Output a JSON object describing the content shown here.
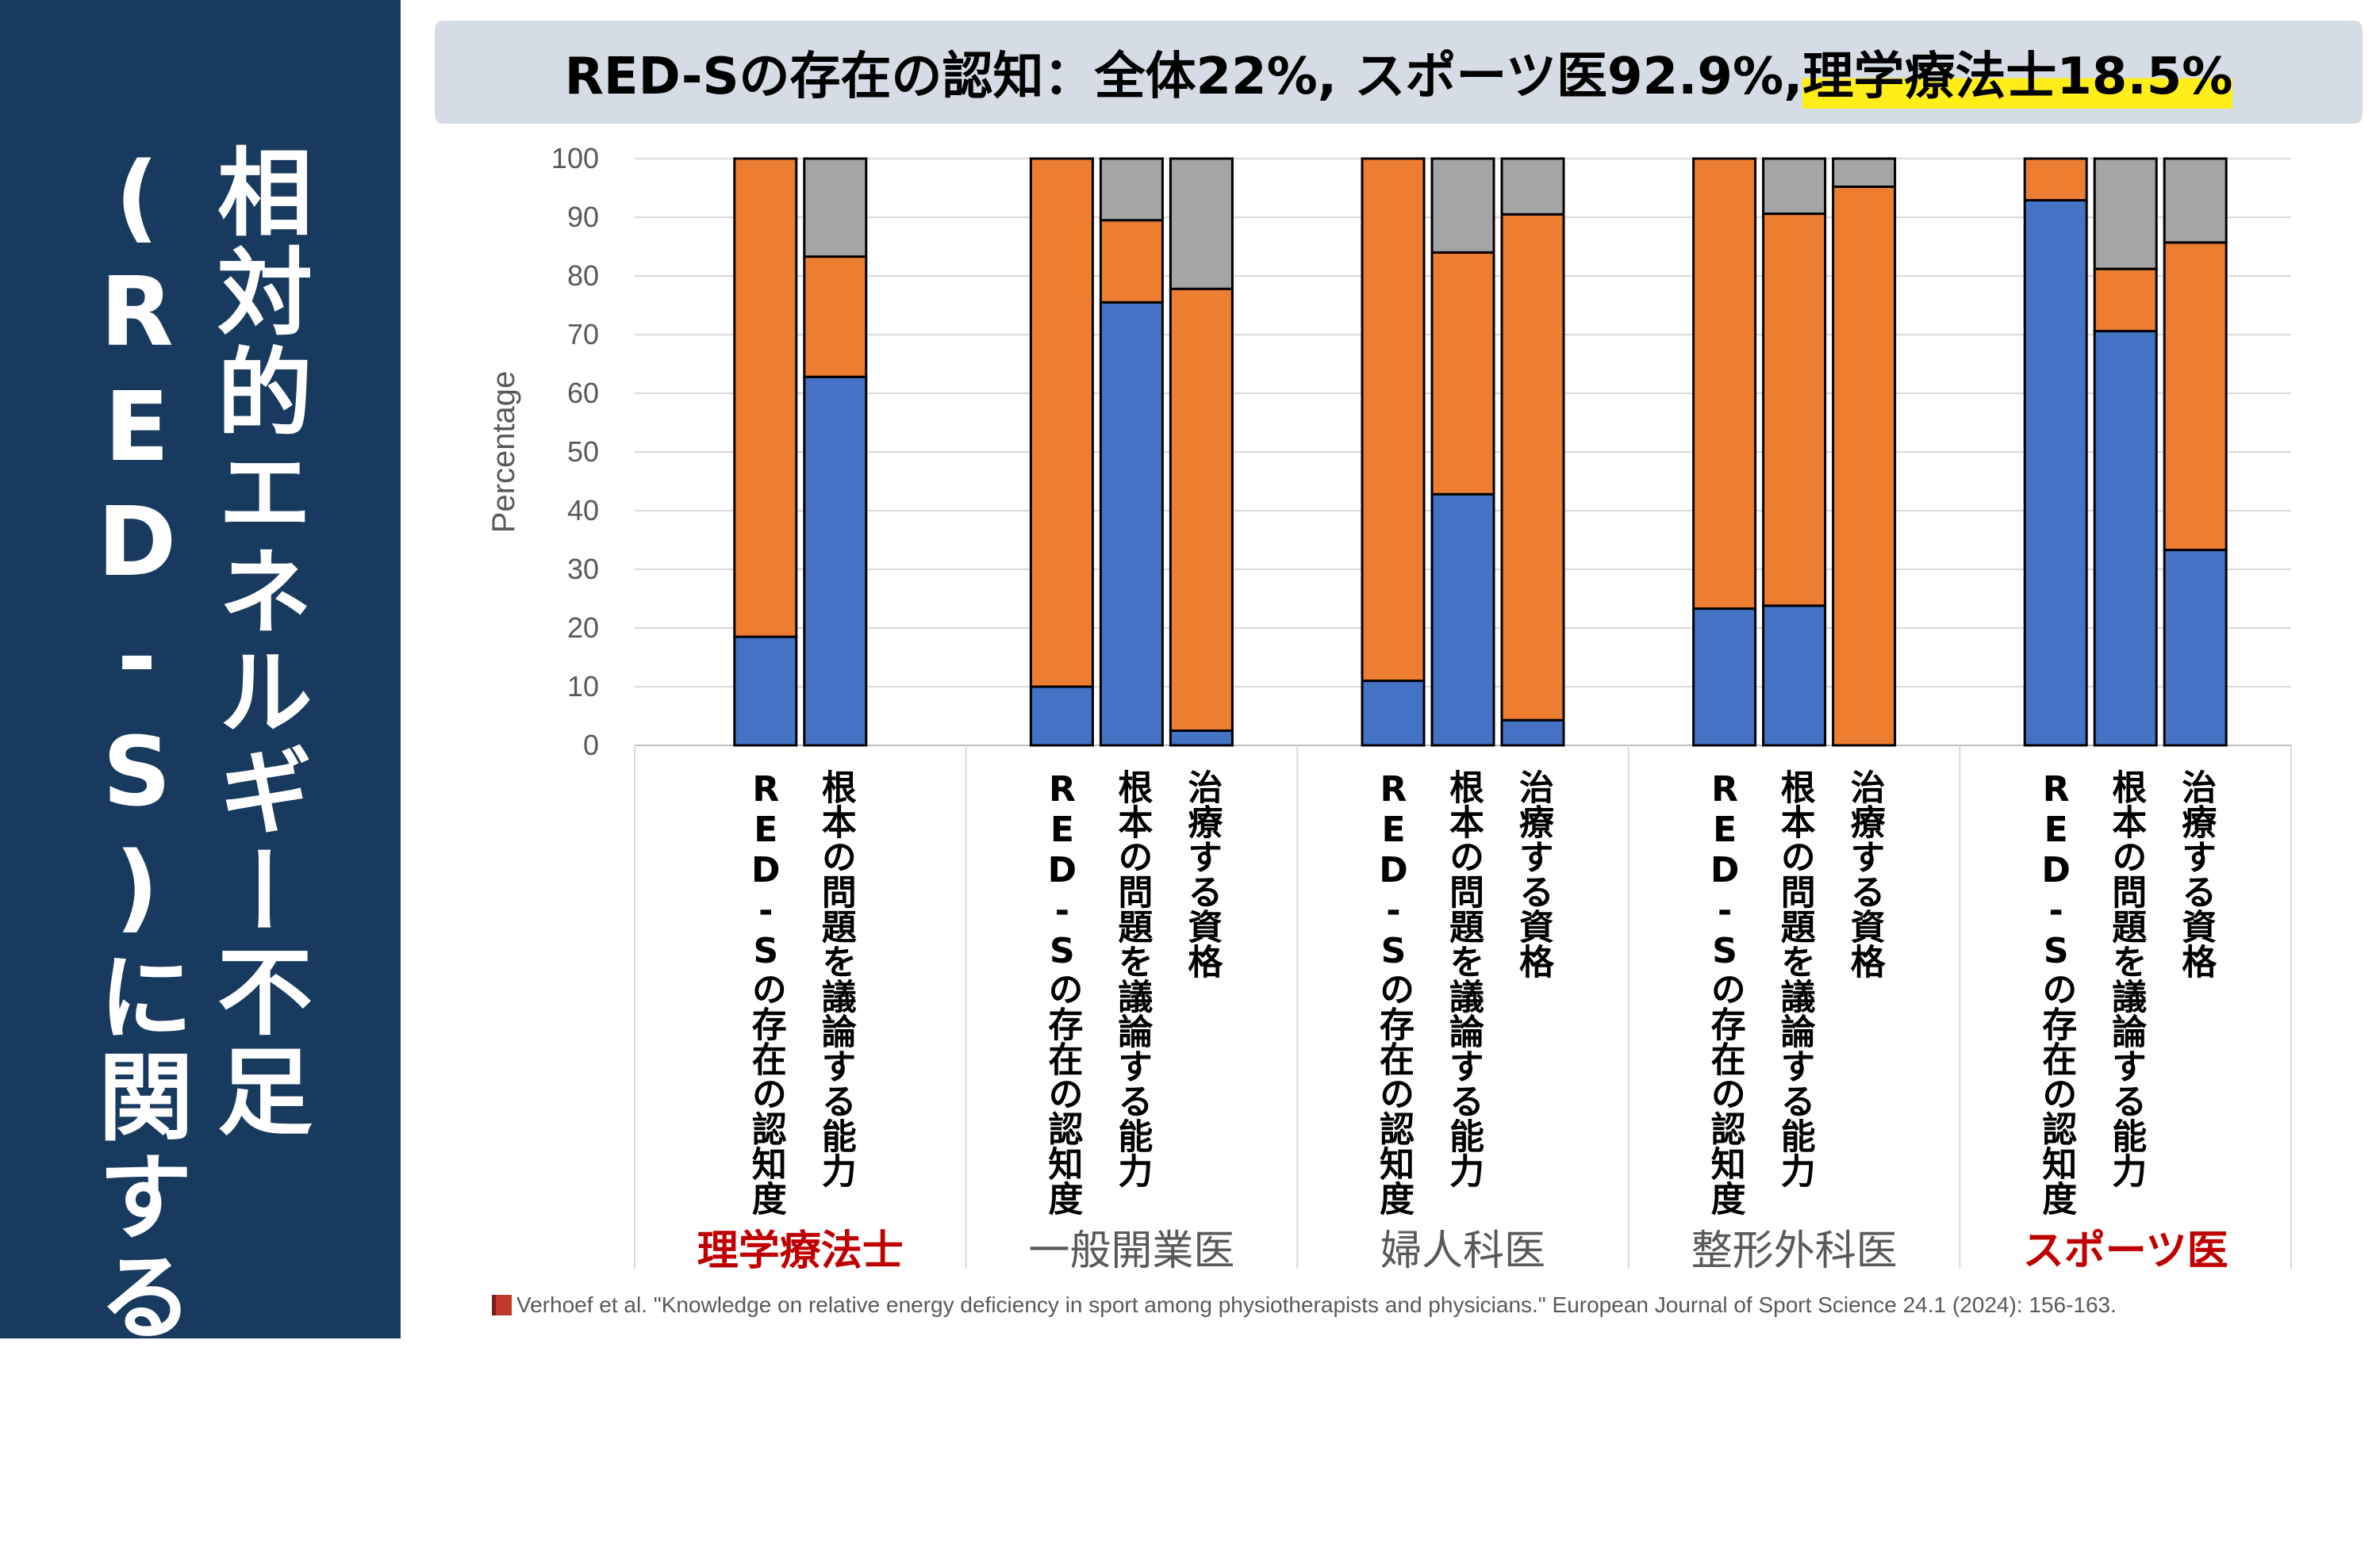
{
  "sidebar": {
    "title_line1": "相対的エネルギー不足",
    "title_line2": "(RED-S)に関する知識"
  },
  "banner": {
    "text_main": "RED-Sの存在の認知：全体22%, スポーツ医92.9%, ",
    "text_highlight": "理学療法士18.5%"
  },
  "citation": {
    "icon": "book-icon",
    "text": "Verhoef et al. \"Knowledge on relative energy deficiency in sport among physiotherapists and physicians.\" European Journal of Sport Science 24.1 (2024): 156-163."
  },
  "colors": {
    "blue": "#4472c4",
    "orange": "#ed7d31",
    "gray": "#a5a5a5",
    "sidebar": "#173a5e",
    "highlight": "#ffee1a",
    "emphasis": "#c00000"
  },
  "chart_data": {
    "type": "bar",
    "stacked": true,
    "ylabel": "Percentage",
    "ylim": [
      0,
      100
    ],
    "yticks": [
      0,
      10,
      20,
      30,
      40,
      50,
      60,
      70,
      80,
      90,
      100
    ],
    "grid": true,
    "series_colors": [
      "#4472c4",
      "#ed7d31",
      "#a5a5a5"
    ],
    "groups": [
      {
        "label": "理学療法士",
        "emphasis": true,
        "bars": [
          {
            "label": "RED-Sの存在の認知度",
            "values": [
              18.5,
              81.5,
              0
            ]
          },
          {
            "label": "根本の問題を議論する能力",
            "values": [
              62.8,
              20.5,
              16.7
            ]
          }
        ]
      },
      {
        "label": "一般開業医",
        "emphasis": false,
        "bars": [
          {
            "label": "RED-Sの存在の認知度",
            "values": [
              10,
              90,
              0
            ]
          },
          {
            "label": "根本の問題を議論する能力",
            "values": [
              75.5,
              14,
              10.5
            ]
          },
          {
            "label": "治療する資格",
            "values": [
              2.5,
              75.3,
              22.2
            ]
          }
        ]
      },
      {
        "label": "婦人科医",
        "emphasis": false,
        "bars": [
          {
            "label": "RED-Sの存在の認知度",
            "values": [
              11,
              89,
              0
            ]
          },
          {
            "label": "根本の問題を議論する能力",
            "values": [
              42.8,
              41.2,
              16
            ]
          },
          {
            "label": "治療する資格",
            "values": [
              4.3,
              86.2,
              9.5
            ]
          }
        ]
      },
      {
        "label": "整形外科医",
        "emphasis": false,
        "bars": [
          {
            "label": "RED-Sの存在の認知度",
            "values": [
              23.3,
              76.7,
              0
            ]
          },
          {
            "label": "根本の問題を議論する能力",
            "values": [
              23.8,
              66.8,
              9.4
            ]
          },
          {
            "label": "治療する資格",
            "values": [
              0,
              95.2,
              4.8
            ]
          }
        ]
      },
      {
        "label": "スポーツ医",
        "emphasis": true,
        "bars": [
          {
            "label": "RED-Sの存在の認知度",
            "values": [
              92.9,
              7.1,
              0
            ]
          },
          {
            "label": "根本の問題を議論する能力",
            "values": [
              70.6,
              10.6,
              18.8
            ]
          },
          {
            "label": "治療する資格",
            "values": [
              33.3,
              52.4,
              14.3
            ]
          }
        ]
      }
    ]
  }
}
